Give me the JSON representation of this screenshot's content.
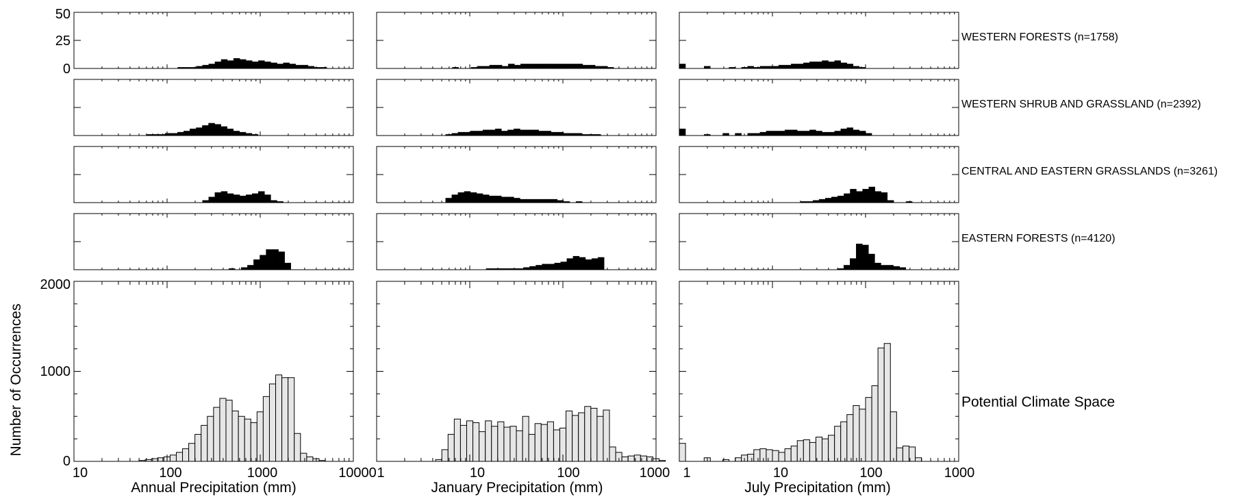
{
  "figure": {
    "ylabel": "Number of Occurrences",
    "upper_ticks": [
      "50",
      "25",
      "0"
    ],
    "upper_ylim": [
      0,
      50
    ],
    "lower_ticks": [
      "2000",
      "1000",
      "0"
    ],
    "lower_ylim": [
      0,
      2000
    ],
    "axis_scale": "log",
    "colors": {
      "vegetation_bars": "#000000",
      "climate_space_bars": "#e6e6e6",
      "bar_edge": "#000000"
    }
  },
  "columns": [
    {
      "xlabel": "Annual Precipitation (mm)",
      "xlim": [
        10,
        10000
      ],
      "ticks": [
        "10",
        "100",
        "1000",
        "10000"
      ]
    },
    {
      "xlabel": "January Precipitation (mm)",
      "xlim": [
        1,
        1000
      ],
      "ticks": [
        "1",
        "10",
        "100",
        "1000"
      ]
    },
    {
      "xlabel": "July Precipitation (mm)",
      "xlim": [
        1,
        1000
      ],
      "ticks": [
        "1",
        "10",
        "100",
        "1000"
      ]
    }
  ],
  "row_labels": [
    "WESTERN FORESTS (n=1758)",
    "WESTERN SHRUB AND GRASSLAND (n=2392)",
    "CENTRAL AND EASTERN GRASSLANDS (n=3261)",
    "EASTERN FORESTS (n=4120)",
    "Potential Climate Space"
  ],
  "chart_data": {
    "type": "bar",
    "title": "",
    "subtitle": "",
    "ylabel": "Number of Occurrences",
    "bins_per_decade": 15,
    "rows": [
      {
        "name": "WESTERN FORESTS (n=1758)",
        "ylim": [
          0,
          50
        ],
        "columns": [
          {
            "xlim": [
              10,
              10000
            ],
            "start": 130,
            "values": [
              1,
              1,
              1,
              2,
              3,
              4,
              6,
              8,
              7,
              9,
              8,
              7,
              6,
              7,
              6,
              5,
              4,
              5,
              4,
              3,
              3,
              2,
              1,
              1
            ]
          },
          {
            "xlim": [
              1,
              1000
            ],
            "start": 6.5,
            "values": [
              1,
              0,
              0,
              1,
              2,
              2,
              3,
              3,
              2,
              4,
              3,
              4,
              4,
              4,
              4,
              4,
              4,
              4,
              4,
              4,
              4,
              3,
              3,
              2,
              2,
              1
            ]
          },
          {
            "xlim": [
              1,
              1000
            ],
            "start": 1,
            "values": [
              4,
              0,
              0,
              0,
              2,
              0,
              0,
              0,
              1,
              0,
              1,
              2,
              1,
              2,
              2,
              2,
              3,
              3,
              4,
              4,
              5,
              6,
              6,
              7,
              6,
              7,
              5,
              4,
              2,
              1
            ]
          }
        ]
      },
      {
        "name": "WESTERN SHRUB AND GRASSLAND (n=2392)",
        "ylim": [
          0,
          50
        ],
        "columns": [
          {
            "xlim": [
              10,
              10000
            ],
            "start": 60,
            "values": [
              1,
              1,
              1,
              2,
              2,
              3,
              4,
              6,
              7,
              9,
              11,
              10,
              8,
              6,
              4,
              3,
              2,
              1
            ]
          },
          {
            "xlim": [
              1,
              1000
            ],
            "start": 5.5,
            "values": [
              1,
              2,
              3,
              3,
              4,
              4,
              5,
              5,
              6,
              4,
              5,
              6,
              5,
              5,
              5,
              4,
              4,
              3,
              3,
              2,
              2,
              2,
              1,
              1,
              1
            ]
          },
          {
            "xlim": [
              1,
              1000
            ],
            "start": 1,
            "values": [
              6,
              0,
              0,
              0,
              1,
              0,
              0,
              2,
              0,
              2,
              0,
              2,
              2,
              3,
              4,
              4,
              4,
              5,
              5,
              4,
              4,
              5,
              4,
              3,
              3,
              4,
              6,
              7,
              5,
              4,
              2
            ]
          }
        ]
      },
      {
        "name": "CENTRAL AND EASTERN GRASSLANDS (n=3261)",
        "ylim": [
          0,
          50
        ],
        "columns": [
          {
            "xlim": [
              10,
              10000
            ],
            "start": 240,
            "values": [
              2,
              5,
              9,
              10,
              8,
              7,
              6,
              7,
              8,
              10,
              7,
              2,
              1
            ]
          },
          {
            "xlim": [
              1,
              1000
            ],
            "start": 5.5,
            "values": [
              4,
              7,
              9,
              10,
              9,
              8,
              7,
              6,
              6,
              5,
              5,
              4,
              3,
              3,
              3,
              3,
              3,
              3,
              2,
              1,
              0,
              1
            ]
          },
          {
            "xlim": [
              1,
              1000
            ],
            "start": 20,
            "values": [
              1,
              1,
              2,
              3,
              4,
              5,
              6,
              8,
              12,
              10,
              12,
              14,
              10,
              9,
              2,
              0,
              0,
              1
            ]
          }
        ]
      },
      {
        "name": "EASTERN FORESTS (n=4120)",
        "ylim": [
          0,
          50
        ],
        "columns": [
          {
            "xlim": [
              10,
              10000
            ],
            "start": 460,
            "values": [
              1,
              0,
              2,
              4,
              9,
              13,
              18,
              18,
              16,
              6
            ]
          },
          {
            "xlim": [
              1,
              1000
            ],
            "start": 15,
            "values": [
              1,
              1,
              1,
              1,
              1,
              1,
              2,
              3,
              4,
              5,
              5,
              6,
              7,
              10,
              12,
              11,
              9,
              10,
              11
            ]
          },
          {
            "xlim": [
              1,
              1000
            ],
            "start": 50,
            "values": [
              1,
              4,
              10,
              23,
              22,
              14,
              6,
              4,
              4,
              3,
              2
            ]
          }
        ]
      },
      {
        "name": "Potential Climate Space",
        "ylim": [
          0,
          2000
        ],
        "columns": [
          {
            "xlim": [
              10,
              10000
            ],
            "start": 50,
            "values": [
              10,
              20,
              30,
              40,
              50,
              70,
              100,
              140,
              200,
              300,
              400,
              500,
              600,
              700,
              680,
              560,
              500,
              470,
              430,
              550,
              720,
              860,
              960,
              930,
              930,
              310,
              90,
              50,
              30,
              10
            ]
          },
          {
            "xlim": [
              1,
              1000
            ],
            "start": 4.3,
            "values": [
              20,
              130,
              300,
              470,
              400,
              450,
              430,
              330,
              450,
              390,
              440,
              380,
              390,
              340,
              500,
              300,
              420,
              410,
              440,
              350,
              370,
              560,
              510,
              540,
              610,
              590,
              500,
              570,
              160,
              100,
              50,
              60,
              70,
              60,
              50,
              30,
              10
            ]
          },
          {
            "xlim": [
              1,
              1000
            ],
            "start": 1,
            "values": [
              200,
              0,
              0,
              0,
              40,
              0,
              0,
              20,
              0,
              40,
              70,
              80,
              130,
              140,
              130,
              120,
              100,
              140,
              170,
              230,
              240,
              210,
              270,
              250,
              290,
              390,
              440,
              520,
              620,
              580,
              710,
              840,
              1260,
              1310,
              550,
              150,
              170,
              160,
              40
            ]
          }
        ]
      }
    ]
  }
}
